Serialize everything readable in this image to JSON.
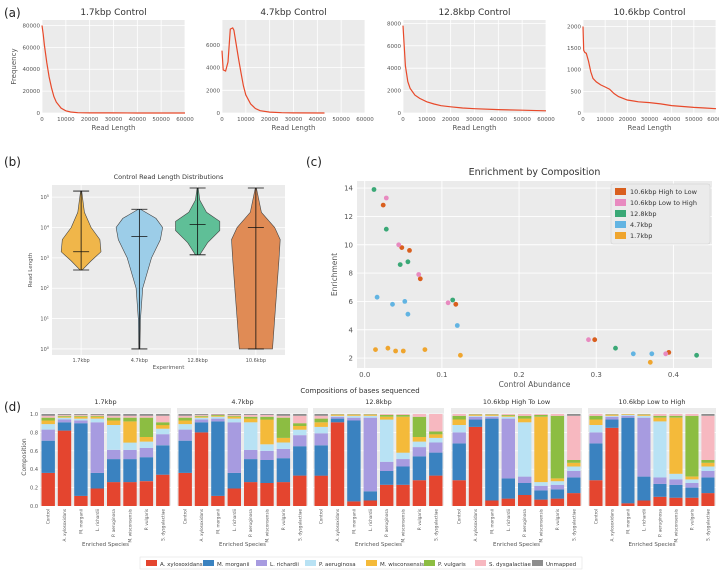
{
  "panel_labels": {
    "a": "(a)",
    "b": "(b)",
    "c": "(c)",
    "d": "(d)"
  },
  "colors": {
    "line": "#e8492a",
    "axes_bg": "#ebebeb",
    "grid": "#ffffff",
    "violins": [
      "#f0b64a",
      "#9ccde8",
      "#5fbf97",
      "#e08b55"
    ],
    "legend": {
      "10.6kbp High to Low": "#d95f1e",
      "10.6kbp Low to High": "#e88ac0",
      "12.8kbp": "#3aa876",
      "4.7kbp": "#62b4e2",
      "1.7kbp": "#efa52e"
    },
    "species": [
      "#e4452f",
      "#3a82c0",
      "#a79be0",
      "#b8e2f4",
      "#f4ba3a",
      "#8cbd42",
      "#f7b8c0",
      "#8d8d8d"
    ]
  },
  "chart_data": [
    {
      "id": "a1",
      "type": "line",
      "title": "1.7kbp Control",
      "xlabel": "Read Length",
      "ylabel": "Frequency",
      "xlim": [
        0,
        60000
      ],
      "ylim": [
        0,
        85000
      ],
      "xticks": [
        0,
        10000,
        20000,
        30000,
        40000,
        50000,
        60000
      ],
      "yticks": [
        0,
        20000,
        40000,
        60000,
        80000
      ],
      "x": [
        0,
        500,
        1000,
        2000,
        3000,
        4000,
        5000,
        6000,
        8000,
        10000,
        12000,
        15000,
        20000,
        30000,
        40000,
        50000,
        60000
      ],
      "y": [
        80000,
        72000,
        62000,
        46000,
        33000,
        23000,
        15000,
        10000,
        4500,
        2000,
        900,
        300,
        100,
        50,
        30,
        20,
        10
      ]
    },
    {
      "id": "a2",
      "type": "line",
      "title": "4.7kbp Control",
      "xlabel": "Read Length",
      "ylabel": "",
      "xlim": [
        0,
        60000
      ],
      "ylim": [
        0,
        8200
      ],
      "xticks": [
        0,
        10000,
        20000,
        30000,
        40000,
        50000,
        60000
      ],
      "yticks": [
        0,
        2000,
        4000,
        6000
      ],
      "x": [
        0,
        500,
        1500,
        2500,
        3500,
        4500,
        5000,
        6000,
        7000,
        8000,
        9000,
        10000,
        12000,
        14000,
        16000,
        20000,
        25000,
        30000,
        43000
      ],
      "y": [
        5500,
        3800,
        3700,
        4500,
        7400,
        7500,
        7300,
        6000,
        4700,
        3500,
        2400,
        1600,
        800,
        400,
        200,
        80,
        30,
        10,
        0
      ]
    },
    {
      "id": "a3",
      "type": "line",
      "title": "12.8kbp Control",
      "xlabel": "Read Length",
      "ylabel": "",
      "xlim": [
        0,
        60000
      ],
      "ylim": [
        0,
        8300
      ],
      "xticks": [
        0,
        10000,
        20000,
        30000,
        40000,
        50000,
        60000
      ],
      "yticks": [
        0,
        2000,
        4000,
        6000,
        8000
      ],
      "x": [
        0,
        500,
        1000,
        2000,
        3000,
        5000,
        7000,
        10000,
        13000,
        16000,
        20000,
        25000,
        30000,
        40000,
        50000,
        60000
      ],
      "y": [
        7800,
        6000,
        4200,
        2800,
        2200,
        1600,
        1300,
        1000,
        800,
        650,
        550,
        450,
        380,
        300,
        250,
        200
      ]
    },
    {
      "id": "a4",
      "type": "line",
      "title": "10.6kbp Control",
      "xlabel": "Read Length",
      "ylabel": "",
      "xlim": [
        0,
        60000
      ],
      "ylim": [
        0,
        2150
      ],
      "xticks": [
        0,
        10000,
        20000,
        30000,
        40000,
        50000,
        60000
      ],
      "yticks": [
        0,
        500,
        1000,
        1500,
        2000
      ],
      "x": [
        0,
        300,
        800,
        1500,
        2500,
        3500,
        4500,
        6000,
        8000,
        10000,
        12000,
        14000,
        16000,
        18000,
        20000,
        25000,
        30000,
        35000,
        40000,
        45000,
        50000,
        55000,
        60000
      ],
      "y": [
        2000,
        1450,
        1400,
        1380,
        1200,
        950,
        800,
        720,
        650,
        600,
        550,
        450,
        380,
        340,
        300,
        260,
        240,
        210,
        170,
        150,
        130,
        115,
        100
      ]
    },
    {
      "id": "b",
      "type": "violin",
      "title": "Control Read Length Distributions",
      "xlabel": "Experiment",
      "ylabel": "Read Length",
      "yscale": "log",
      "ylim_exp": [
        -0.2,
        5.4
      ],
      "yticks": [
        "10^0",
        "10^1",
        "10^2",
        "10^3",
        "10^4",
        "10^5"
      ],
      "categories": [
        "1.7kbp",
        "4.7kbp",
        "12.8kbp",
        "10.6kbp"
      ],
      "min_exp": [
        2.6,
        0,
        3.1,
        0
      ],
      "max_exp": [
        5.2,
        4.6,
        5.3,
        5.3
      ],
      "median_exp": [
        3.2,
        3.7,
        4.1,
        4.0
      ]
    },
    {
      "id": "c",
      "type": "scatter",
      "title": "Enrichment by Composition",
      "xlabel": "Control Abundance",
      "ylabel": "Enrichment",
      "xlim": [
        -0.01,
        0.45
      ],
      "ylim": [
        1.3,
        14.5
      ],
      "xticks": [
        0.0,
        0.1,
        0.2,
        0.3,
        0.4
      ],
      "yticks": [
        2,
        4,
        6,
        8,
        10,
        12,
        14
      ],
      "legend_position": "top-right",
      "series": [
        {
          "name": "10.6kbp High to Low",
          "points": [
            [
              0.024,
              12.8
            ],
            [
              0.058,
              9.6
            ],
            [
              0.048,
              9.8
            ],
            [
              0.072,
              7.6
            ],
            [
              0.118,
              5.8
            ],
            [
              0.298,
              3.3
            ],
            [
              0.394,
              2.4
            ]
          ]
        },
        {
          "name": "10.6kbp Low to High",
          "points": [
            [
              0.028,
              13.3
            ],
            [
              0.044,
              10.0
            ],
            [
              0.07,
              7.9
            ],
            [
              0.108,
              5.9
            ],
            [
              0.29,
              3.3
            ],
            [
              0.39,
              2.3
            ]
          ]
        },
        {
          "name": "12.8kbp",
          "points": [
            [
              0.012,
              13.9
            ],
            [
              0.028,
              11.1
            ],
            [
              0.046,
              8.6
            ],
            [
              0.056,
              8.8
            ],
            [
              0.114,
              6.1
            ],
            [
              0.325,
              2.7
            ],
            [
              0.43,
              2.2
            ]
          ]
        },
        {
          "name": "4.7kbp",
          "points": [
            [
              0.016,
              6.3
            ],
            [
              0.036,
              5.8
            ],
            [
              0.052,
              6.0
            ],
            [
              0.056,
              5.1
            ],
            [
              0.12,
              4.3
            ],
            [
              0.348,
              2.3
            ],
            [
              0.372,
              2.3
            ]
          ]
        },
        {
          "name": "1.7kbp",
          "points": [
            [
              0.014,
              2.6
            ],
            [
              0.03,
              2.7
            ],
            [
              0.04,
              2.5
            ],
            [
              0.05,
              2.5
            ],
            [
              0.078,
              2.6
            ],
            [
              0.124,
              2.2
            ],
            [
              0.37,
              1.7
            ]
          ]
        }
      ]
    },
    {
      "id": "d",
      "type": "stacked_bar",
      "suptitle": "Compositions of bases sequenced",
      "ylabel": "Composition",
      "xlabel": "Enriched Species",
      "yticks": [
        0.0,
        0.2,
        0.4,
        0.6,
        0.8,
        1.0
      ],
      "categories": [
        "Control",
        "A. xylosoxidans",
        "M. morganii",
        "L. richardii",
        "P. aeruginosa",
        "M. wisconsensis",
        "P. vulgaris",
        "S. dysgalactiae"
      ],
      "legend": [
        "A. xylosoxidans",
        "M. morganii",
        "L. richardii",
        "P. aeruginosa",
        "M. wisconsensis",
        "P. vulgaris",
        "S. dysgalactiae",
        "Unmapped"
      ],
      "panels": [
        {
          "title": "1.7kbp",
          "bars": [
            [
              0.36,
              0.35,
              0.12,
              0.06,
              0.04,
              0.03,
              0.02,
              0.02
            ],
            [
              0.82,
              0.09,
              0.03,
              0.02,
              0.01,
              0.01,
              0.01,
              0.01
            ],
            [
              0.11,
              0.79,
              0.03,
              0.02,
              0.02,
              0.01,
              0.01,
              0.01
            ],
            [
              0.19,
              0.17,
              0.55,
              0.04,
              0.02,
              0.01,
              0.01,
              0.01
            ],
            [
              0.26,
              0.25,
              0.1,
              0.27,
              0.05,
              0.03,
              0.02,
              0.02
            ],
            [
              0.26,
              0.25,
              0.1,
              0.08,
              0.23,
              0.04,
              0.02,
              0.02
            ],
            [
              0.27,
              0.26,
              0.1,
              0.07,
              0.05,
              0.21,
              0.02,
              0.02
            ],
            [
              0.34,
              0.32,
              0.12,
              0.06,
              0.04,
              0.03,
              0.07,
              0.02
            ]
          ]
        },
        {
          "title": "4.7kbp",
          "bars": [
            [
              0.36,
              0.35,
              0.12,
              0.06,
              0.04,
              0.03,
              0.02,
              0.02
            ],
            [
              0.8,
              0.11,
              0.03,
              0.02,
              0.01,
              0.01,
              0.01,
              0.01
            ],
            [
              0.11,
              0.81,
              0.03,
              0.02,
              0.01,
              0.01,
              0.005,
              0.005
            ],
            [
              0.19,
              0.17,
              0.55,
              0.04,
              0.02,
              0.01,
              0.01,
              0.01
            ],
            [
              0.26,
              0.25,
              0.1,
              0.3,
              0.04,
              0.02,
              0.02,
              0.01
            ],
            [
              0.25,
              0.25,
              0.1,
              0.07,
              0.27,
              0.03,
              0.02,
              0.01
            ],
            [
              0.26,
              0.26,
              0.1,
              0.07,
              0.05,
              0.22,
              0.02,
              0.02
            ],
            [
              0.33,
              0.32,
              0.12,
              0.06,
              0.04,
              0.03,
              0.08,
              0.02
            ]
          ]
        },
        {
          "title": "12.8kbp",
          "bars": [
            [
              0.33,
              0.33,
              0.13,
              0.07,
              0.05,
              0.04,
              0.03,
              0.02
            ],
            [
              0.91,
              0.04,
              0.02,
              0.01,
              0.01,
              0.005,
              0.005,
              0.0
            ],
            [
              0.05,
              0.88,
              0.03,
              0.02,
              0.01,
              0.005,
              0.005,
              0.0
            ],
            [
              0.06,
              0.1,
              0.8,
              0.02,
              0.01,
              0.005,
              0.005,
              0.0
            ],
            [
              0.23,
              0.15,
              0.1,
              0.46,
              0.03,
              0.02,
              0.01,
              0.0
            ],
            [
              0.23,
              0.2,
              0.08,
              0.07,
              0.39,
              0.02,
              0.01,
              0.0
            ],
            [
              0.28,
              0.26,
              0.1,
              0.06,
              0.05,
              0.22,
              0.03,
              0.0
            ],
            [
              0.33,
              0.25,
              0.11,
              0.05,
              0.04,
              0.03,
              0.19,
              0.0
            ]
          ]
        },
        {
          "title": "10.6kbp High To Low",
          "bars": [
            [
              0.28,
              0.4,
              0.12,
              0.08,
              0.06,
              0.04,
              0.02,
              0.0
            ],
            [
              0.86,
              0.08,
              0.03,
              0.01,
              0.01,
              0.005,
              0.005,
              0.0
            ],
            [
              0.06,
              0.89,
              0.02,
              0.01,
              0.01,
              0.005,
              0.005,
              0.0
            ],
            [
              0.08,
              0.22,
              0.65,
              0.02,
              0.01,
              0.01,
              0.01,
              0.0
            ],
            [
              0.12,
              0.13,
              0.07,
              0.59,
              0.04,
              0.03,
              0.02,
              0.0
            ],
            [
              0.07,
              0.1,
              0.05,
              0.04,
              0.71,
              0.02,
              0.01,
              0.0
            ],
            [
              0.08,
              0.1,
              0.05,
              0.04,
              0.03,
              0.68,
              0.02,
              0.0
            ],
            [
              0.14,
              0.17,
              0.07,
              0.05,
              0.04,
              0.03,
              0.48,
              0.02
            ]
          ]
        },
        {
          "title": "10.6kbp Low to High",
          "bars": [
            [
              0.28,
              0.4,
              0.12,
              0.08,
              0.06,
              0.04,
              0.02,
              0.0
            ],
            [
              0.85,
              0.09,
              0.03,
              0.01,
              0.01,
              0.005,
              0.005,
              0.0
            ],
            [
              0.03,
              0.93,
              0.02,
              0.01,
              0.005,
              0.003,
              0.002,
              0.0
            ],
            [
              0.06,
              0.26,
              0.64,
              0.02,
              0.01,
              0.005,
              0.005,
              0.0
            ],
            [
              0.1,
              0.14,
              0.07,
              0.61,
              0.04,
              0.02,
              0.02,
              0.0
            ],
            [
              0.09,
              0.14,
              0.06,
              0.06,
              0.61,
              0.02,
              0.02,
              0.0
            ],
            [
              0.09,
              0.11,
              0.05,
              0.04,
              0.03,
              0.66,
              0.02,
              0.0
            ],
            [
              0.14,
              0.17,
              0.07,
              0.05,
              0.04,
              0.03,
              0.48,
              0.02
            ]
          ]
        }
      ]
    }
  ]
}
